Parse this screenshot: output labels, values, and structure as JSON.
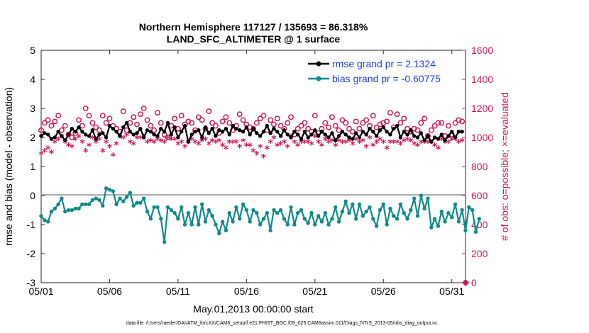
{
  "chart_data": {
    "type": "line",
    "title_line1": "Northern Hemisphere 117127 / 135693 = 86.318%",
    "title_line2": "LAND_SFC_ALTIMETER @ 1 surface",
    "xlabel": "May.01,2013 00:00:00 start",
    "ylabel_left": "rmse and bias (model - observation)",
    "ylabel_right": "# of obs: o=possible; ×=evaluated",
    "xlim": [
      1,
      32
    ],
    "ylim_left": [
      -3,
      5
    ],
    "ylim_right": [
      0,
      1600
    ],
    "x_ticks": [
      1,
      6,
      11,
      16,
      21,
      26,
      31
    ],
    "x_tick_labels": [
      "05/01",
      "05/06",
      "05/11",
      "05/16",
      "05/21",
      "05/26",
      "05/31"
    ],
    "y_ticks_left": [
      -3,
      -2,
      -1,
      0,
      1,
      2,
      3,
      4,
      5
    ],
    "y_tick_labels_left": [
      "-3",
      "-2",
      "-1",
      "0",
      "1",
      "2",
      "3",
      "4",
      "5"
    ],
    "y_ticks_right": [
      0,
      200,
      400,
      600,
      800,
      1000,
      1200,
      1400,
      1600
    ],
    "y_tick_labels_right": [
      "0",
      "200",
      "400",
      "600",
      "800",
      "1000",
      "1200",
      "1400",
      "1600"
    ],
    "zero_line": 0,
    "n_points": 124,
    "x_start": 1.0,
    "x_step": 0.25,
    "series": [
      {
        "name": "rmse grand pr = 2.1324",
        "axis": "left",
        "color": "#000000",
        "marker": "dot",
        "values": [
          2.05,
          2.15,
          2.1,
          1.95,
          2.0,
          2.2,
          2.05,
          1.9,
          2.1,
          2.3,
          2.2,
          2.35,
          2.2,
          2.1,
          2.05,
          2.25,
          1.95,
          2.1,
          2.15,
          2.0,
          2.4,
          2.3,
          2.2,
          2.05,
          2.35,
          2.5,
          2.2,
          2.1,
          2.15,
          2.3,
          2.0,
          2.25,
          2.2,
          2.1,
          2.05,
          2.3,
          2.2,
          2.5,
          2.1,
          2.35,
          2.0,
          2.2,
          2.4,
          1.85,
          2.1,
          2.2,
          2.25,
          2.0,
          2.35,
          2.15,
          2.3,
          2.05,
          2.25,
          2.2,
          2.3,
          2.1,
          2.4,
          2.3,
          2.25,
          2.2,
          2.35,
          2.1,
          2.3,
          2.15,
          2.05,
          2.2,
          2.4,
          2.15,
          2.3,
          2.2,
          2.05,
          2.25,
          2.1,
          2.0,
          2.2,
          2.1,
          1.95,
          2.2,
          2.0,
          2.1,
          2.25,
          2.05,
          2.2,
          2.1,
          2.0,
          2.15,
          1.9,
          2.05,
          2.2,
          2.1,
          2.0,
          1.95,
          2.15,
          2.0,
          2.2,
          2.1,
          2.3,
          2.2,
          2.05,
          2.25,
          2.35,
          2.2,
          2.1,
          2.3,
          2.4,
          2.0,
          2.2,
          2.1,
          2.25,
          2.05,
          2.0,
          2.15,
          1.9,
          2.05,
          1.85,
          2.0,
          1.95,
          2.1,
          1.9,
          2.05,
          2.2,
          2.0,
          2.2,
          2.2
        ]
      },
      {
        "name": "bias grand pr = -0.60775",
        "axis": "left",
        "color": "#108a88",
        "marker": "dot",
        "values": [
          -0.7,
          -0.85,
          -0.9,
          -0.55,
          -0.45,
          -0.3,
          -0.1,
          -0.55,
          -0.5,
          -0.5,
          -0.45,
          -0.45,
          -0.3,
          -0.3,
          -0.3,
          -0.15,
          -0.1,
          -0.15,
          -0.35,
          0.25,
          0.2,
          0.15,
          -0.3,
          -0.1,
          -0.2,
          -0.05,
          0.1,
          -0.35,
          -0.25,
          -0.25,
          -0.1,
          -0.55,
          -0.8,
          -0.4,
          -0.4,
          -0.8,
          -1.6,
          -0.4,
          -0.5,
          -0.6,
          -0.8,
          -0.4,
          -1.0,
          -0.6,
          -1.0,
          -0.4,
          -1.0,
          -0.3,
          -0.9,
          -0.5,
          -0.7,
          -1.0,
          -1.3,
          -0.9,
          -1.2,
          -0.6,
          -0.9,
          -0.4,
          -0.8,
          -0.3,
          -0.5,
          -0.9,
          -0.5,
          -0.6,
          -1.0,
          -0.8,
          -0.6,
          -1.2,
          -0.5,
          -0.6,
          -0.5,
          -0.8,
          -1.0,
          -0.4,
          -1.0,
          -0.6,
          -0.5,
          -0.8,
          -0.95,
          -0.6,
          -1.0,
          -0.7,
          -0.9,
          -0.6,
          -1.0,
          -0.8,
          -0.4,
          -0.9,
          -0.55,
          -0.2,
          -0.6,
          -0.3,
          -0.8,
          -0.3,
          -0.7,
          -0.55,
          -0.4,
          -0.8,
          -1.05,
          -0.5,
          -0.3,
          -1.0,
          -0.45,
          -0.7,
          -0.8,
          -0.3,
          -0.6,
          -0.8,
          -0.5,
          -0.1,
          -0.7,
          0.0,
          -0.45,
          -0.1,
          -1.1,
          -0.8,
          -1.05,
          -0.55,
          -0.9,
          -0.6,
          -0.75,
          -0.3,
          -0.9,
          -0.5,
          -1.2,
          -0.4,
          -0.5,
          -1.25,
          -0.8
        ]
      },
      {
        "name": "# of obs possible",
        "axis": "right",
        "color": "#c8185c",
        "marker": "circle",
        "values": [
          1050,
          1100,
          1120,
          1080,
          1110,
          1150,
          1050,
          1080,
          1020,
          1000,
          1030,
          1120,
          1080,
          1200,
          1150,
          1100,
          1070,
          1050,
          1150,
          1100,
          1130,
          1080,
          1060,
          1040,
          1180,
          1050,
          1100,
          1140,
          1090,
          1160,
          1200,
          1120,
          1080,
          1050,
          1170,
          1100,
          1020,
          1000,
          1080,
          1130,
          1060,
          1150,
          1090,
          1110,
          1100,
          1050,
          1140,
          1120,
          1060,
          1180,
          1100,
          1080,
          1030,
          1110,
          1140,
          1100,
          1050,
          1080,
          1160,
          1120,
          1090,
          1070,
          1060,
          1100,
          1130,
          1150,
          1050,
          1120,
          1090,
          1130,
          1080,
          1060,
          1100,
          1140,
          1020,
          1060,
          1080,
          1100,
          1060,
          1040,
          1150,
          1030,
          1060,
          1100,
          1070,
          1140,
          1080,
          1050,
          1120,
          1100,
          1060,
          1040,
          1110,
          1060,
          1100,
          1120,
          1080,
          1150,
          1070,
          1090,
          1100,
          1110,
          1170,
          1070,
          1160,
          1100,
          1130,
          1060,
          1040,
          1060,
          1050,
          1100,
          1130,
          1010,
          1050,
          1080,
          1100,
          1100,
          1010,
          1080,
          1020,
          1100,
          1120,
          1110
        ]
      },
      {
        "name": "# of obs evaluated",
        "axis": "right",
        "color": "#c8185c",
        "marker": "star",
        "values": [
          880,
          900,
          920,
          890,
          960,
          980,
          1000,
          960,
          940,
          930,
          980,
          1000,
          960,
          900,
          940,
          990,
          960,
          980,
          900,
          960,
          930,
          870,
          950,
          1000,
          990,
          1010,
          960,
          950,
          990,
          990,
          1000,
          960,
          970,
          960,
          980,
          970,
          960,
          990,
          980,
          980,
          950,
          960,
          930,
          960,
          980,
          960,
          950,
          970,
          980,
          950,
          970,
          960,
          970,
          940,
          920,
          960,
          960,
          960,
          930,
          970,
          940,
          940,
          900,
          880,
          930,
          860,
          920,
          960,
          990,
          940,
          950,
          960,
          930,
          1000,
          960,
          940,
          960,
          960,
          960,
          950,
          1000,
          960,
          940,
          980,
          960,
          970,
          940,
          970,
          960,
          960,
          970,
          950,
          980,
          960,
          970,
          930,
          990,
          940,
          960,
          980,
          960,
          920,
          960,
          960,
          960,
          950,
          970,
          980,
          970,
          950,
          940,
          960,
          960,
          960,
          960,
          940,
          920,
          980,
          960,
          960,
          980,
          980,
          960,
          970
        ]
      }
    ],
    "right_axis_marker_value": 0,
    "legend_position": "top-right",
    "grid": false
  },
  "footnote": "data file: /Users/raeder/DAI/ATM_forcXX/CAM6_setup/f.e21.FHIST_BGC.f09_025.CAM6assim.011/Diags_NTrS_2013-05/obs_diag_output.nc"
}
